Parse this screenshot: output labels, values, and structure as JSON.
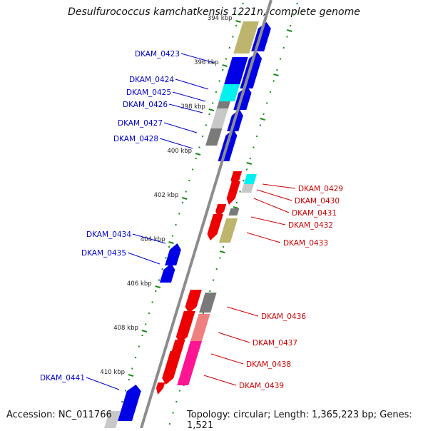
{
  "title": "Desulfurococcus kamchatkensis 1221n, complete genome",
  "footer": {
    "accession": "Accession: NC_011766",
    "topology": "Topology: circular; Length: 1,365,223 bp; Genes: 1,521"
  },
  "colors": {
    "forward_label": "#0000cc",
    "reverse_label": "#cc0000",
    "backbone": "#8c8c8c",
    "tick": "#1a8a1a",
    "blue": "#0000e6",
    "red": "#ee0000",
    "olive": "#bdb56d",
    "cyan": "#00f0f0",
    "gray": "#7a7a7a",
    "lightgray": "#c8c8c8",
    "pink": "#f08080",
    "magenta": "#ff1493"
  },
  "ruler_ticks": [
    {
      "label": "394 kbp",
      "kbp": 394
    },
    {
      "label": "396 kbp",
      "kbp": 396
    },
    {
      "label": "398 kbp",
      "kbp": 398
    },
    {
      "label": "400 kbp",
      "kbp": 400
    },
    {
      "label": "402 kbp",
      "kbp": 402
    },
    {
      "label": "404 kbp",
      "kbp": 404
    },
    {
      "label": "406 kbp",
      "kbp": 406
    },
    {
      "label": "408 kbp",
      "kbp": 408
    },
    {
      "label": "410 kbp",
      "kbp": 410
    }
  ],
  "genes": [
    {
      "id": "DKAM_0423",
      "strand": "+",
      "labeled": true
    },
    {
      "id": "DKAM_0424",
      "strand": "+",
      "labeled": true
    },
    {
      "id": "DKAM_0425",
      "strand": "+",
      "labeled": true
    },
    {
      "id": "DKAM_0426",
      "strand": "+",
      "labeled": true
    },
    {
      "id": "DKAM_0427",
      "strand": "+",
      "labeled": true
    },
    {
      "id": "DKAM_0428",
      "strand": "+",
      "labeled": true
    },
    {
      "id": "DKAM_0429",
      "strand": "-",
      "labeled": true
    },
    {
      "id": "DKAM_0430",
      "strand": "-",
      "labeled": true
    },
    {
      "id": "DKAM_0431",
      "strand": "-",
      "labeled": true
    },
    {
      "id": "DKAM_0432",
      "strand": "-",
      "labeled": true
    },
    {
      "id": "DKAM_0433",
      "strand": "-",
      "labeled": true
    },
    {
      "id": "DKAM_0434",
      "strand": "+",
      "labeled": true
    },
    {
      "id": "DKAM_0435",
      "strand": "+",
      "labeled": true
    },
    {
      "id": "DKAM_0436",
      "strand": "-",
      "labeled": true
    },
    {
      "id": "DKAM_0437",
      "strand": "-",
      "labeled": true
    },
    {
      "id": "DKAM_0438",
      "strand": "-",
      "labeled": true
    },
    {
      "id": "DKAM_0439",
      "strand": "-",
      "labeled": true
    },
    {
      "id": "DKAM_0441",
      "strand": "+",
      "labeled": true
    }
  ]
}
